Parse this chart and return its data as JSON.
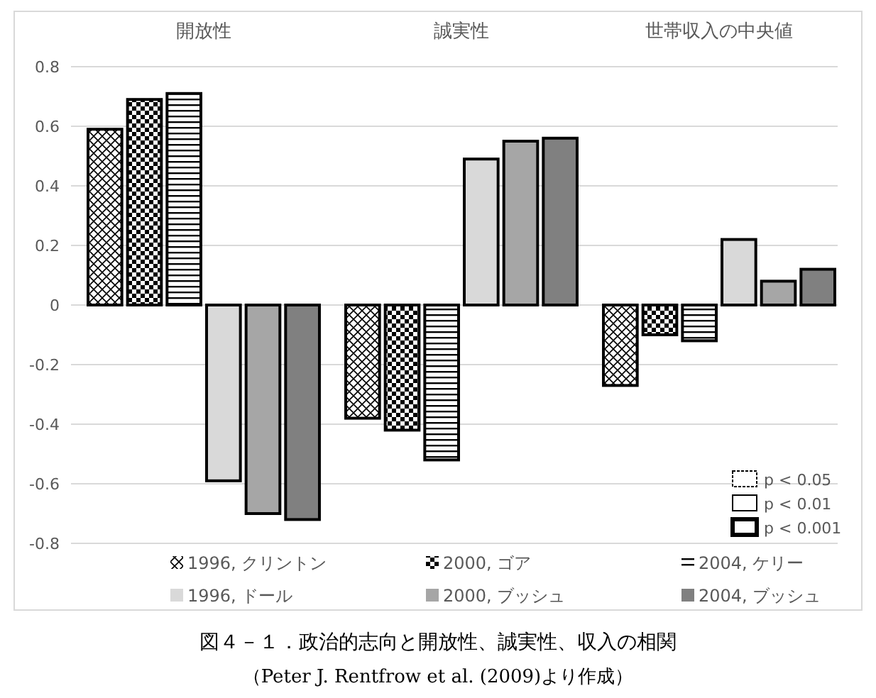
{
  "chart_data": {
    "type": "bar",
    "title": "図４－１．政治的志向と開放性、誠実性、収入の相関",
    "subtitle": "（Peter J. Rentfrow et al. (2009)より作成）",
    "categories": [
      "開放性",
      "誠実性",
      "世帯収入の中央値"
    ],
    "series": [
      {
        "name": "1996, クリントン",
        "color": "#000000",
        "values": [
          0.59,
          -0.38,
          -0.27
        ]
      },
      {
        "name": "2000, ゴア",
        "color": "#000000",
        "values": [
          0.69,
          -0.42,
          -0.1
        ]
      },
      {
        "name": "2004, ケリー",
        "color": "#000000",
        "values": [
          0.71,
          -0.52,
          -0.12
        ]
      },
      {
        "name": "1996, ドール",
        "color": "#d9d9d9",
        "values": [
          -0.59,
          0.49,
          0.22
        ]
      },
      {
        "name": "2000, ブッシュ",
        "color": "#a6a6a6",
        "values": [
          -0.7,
          0.55,
          0.08
        ]
      },
      {
        "name": "2004, ブッシュ",
        "color": "#808080",
        "values": [
          -0.72,
          0.56,
          0.12
        ]
      }
    ],
    "ylim": [
      -0.8,
      0.8
    ],
    "yticks": [
      -0.8,
      -0.6,
      -0.4,
      -0.2,
      0,
      0.2,
      0.4,
      0.6,
      0.8
    ],
    "grid": "y",
    "legend": "bottom",
    "annotations": [
      "p < 0.05",
      "p < 0.01",
      "p < 0.001"
    ]
  }
}
